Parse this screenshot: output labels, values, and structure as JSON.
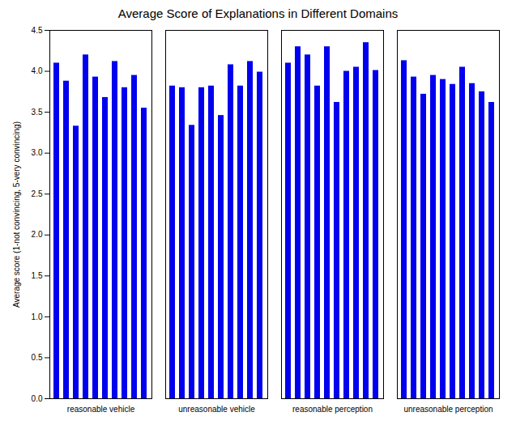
{
  "chart_data": {
    "type": "bar",
    "title": "Average Score of Explanations in Different Domains",
    "ylabel": "Average score (1-not convincing, 5-very convincing)",
    "categories": [
      "reasonable vehicle",
      "unreasonable vehicle",
      "reasonable perception",
      "unreasonable perception"
    ],
    "series": [
      {
        "values": [
          4.1,
          3.82,
          4.1,
          4.13
        ]
      },
      {
        "values": [
          3.88,
          3.8,
          4.3,
          3.93
        ]
      },
      {
        "values": [
          3.33,
          3.34,
          4.2,
          3.72
        ]
      },
      {
        "values": [
          4.2,
          3.8,
          3.82,
          3.95
        ]
      },
      {
        "values": [
          3.93,
          3.82,
          4.3,
          3.9
        ]
      },
      {
        "values": [
          3.68,
          3.46,
          3.62,
          3.84
        ]
      },
      {
        "values": [
          4.12,
          4.08,
          4.0,
          4.05
        ]
      },
      {
        "values": [
          3.8,
          3.82,
          4.05,
          3.85
        ]
      },
      {
        "values": [
          3.95,
          4.12,
          4.35,
          3.75
        ]
      },
      {
        "values": [
          3.55,
          3.99,
          4.01,
          3.62
        ]
      }
    ],
    "color": "#0000EE",
    "ylim": [
      0,
      4.5
    ],
    "yticks": [
      {
        "value": 0,
        "label": "0.0"
      },
      0.5,
      {
        "value": 1,
        "label": "1.0"
      },
      1.5,
      {
        "value": 2,
        "label": "2.0"
      },
      2.5,
      {
        "value": 3,
        "label": "3.0"
      },
      3.5,
      {
        "value": 4,
        "label": "4.0"
      },
      4.5
    ],
    "grid": false
  }
}
